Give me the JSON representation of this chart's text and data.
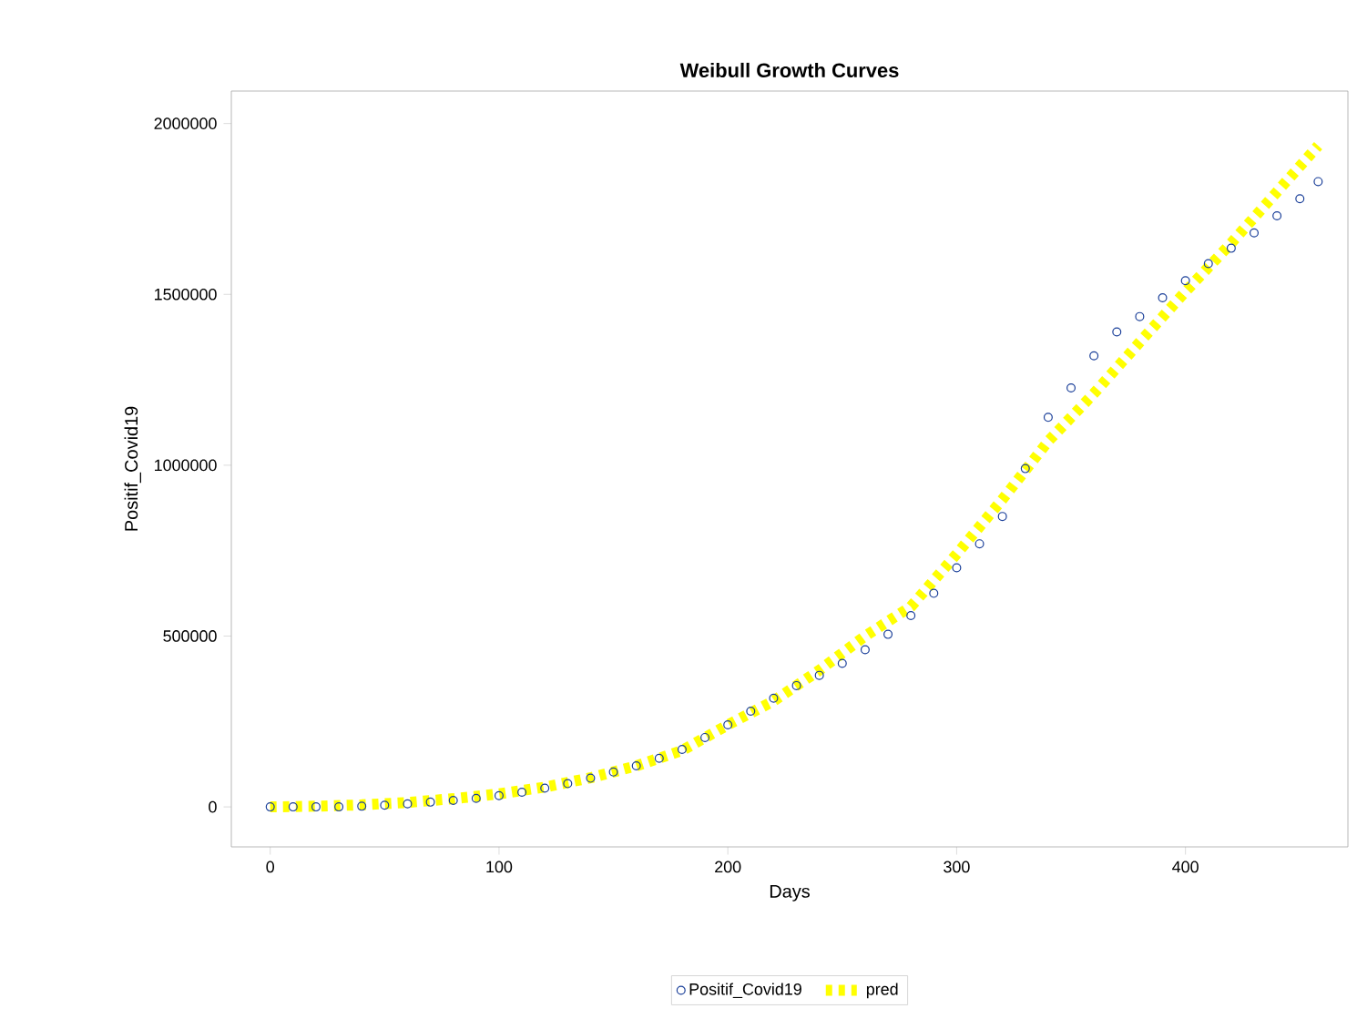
{
  "chart_data": {
    "type": "scatter",
    "title": "Weibull Growth Curves",
    "xlabel": "Days",
    "ylabel": "Positif_Covid19",
    "xlim": [
      -17,
      471
    ],
    "ylim": [
      -117000,
      2095000
    ],
    "xticks": [
      0,
      100,
      200,
      300,
      400
    ],
    "yticks": [
      0,
      500000,
      1000000,
      1500000,
      2000000
    ],
    "grid": false,
    "legend": "bottom",
    "series": [
      {
        "name": "Positif_Covid19",
        "marker": "circle",
        "color": "#1a3f99",
        "x": [
          0,
          10,
          20,
          30,
          40,
          50,
          60,
          70,
          80,
          90,
          100,
          110,
          120,
          130,
          140,
          150,
          160,
          170,
          180,
          190,
          200,
          210,
          220,
          230,
          240,
          250,
          260,
          270,
          280,
          290,
          300,
          310,
          320,
          330,
          340,
          350,
          360,
          370,
          380,
          390,
          400,
          410,
          420,
          430,
          440,
          450,
          458
        ],
        "values": [
          0,
          0,
          0,
          0,
          2000,
          5000,
          9000,
          14000,
          19000,
          25000,
          33000,
          43000,
          55000,
          68000,
          84000,
          102000,
          120000,
          142000,
          168000,
          203000,
          240000,
          280000,
          318000,
          355000,
          385000,
          420000,
          460000,
          505000,
          560000,
          625000,
          700000,
          770000,
          850000,
          990000,
          1140000,
          1226000,
          1320000,
          1390000,
          1435000,
          1490000,
          1540000,
          1590000,
          1635000,
          1680000,
          1730000,
          1780000,
          1830000
        ]
      },
      {
        "name": "pred",
        "type": "line",
        "line_style": "dashed",
        "color": "#ffff00",
        "x": [
          0,
          20,
          40,
          60,
          80,
          100,
          120,
          140,
          160,
          180,
          200,
          220,
          240,
          260,
          280,
          300,
          320,
          340,
          360,
          380,
          400,
          420,
          440,
          458
        ],
        "values": [
          0,
          2000,
          6000,
          13000,
          24000,
          38000,
          58000,
          85000,
          120000,
          165000,
          240000,
          310000,
          400000,
          500000,
          586000,
          740000,
          900000,
          1070000,
          1210000,
          1360000,
          1508000,
          1650000,
          1800000,
          1935000
        ]
      }
    ]
  }
}
